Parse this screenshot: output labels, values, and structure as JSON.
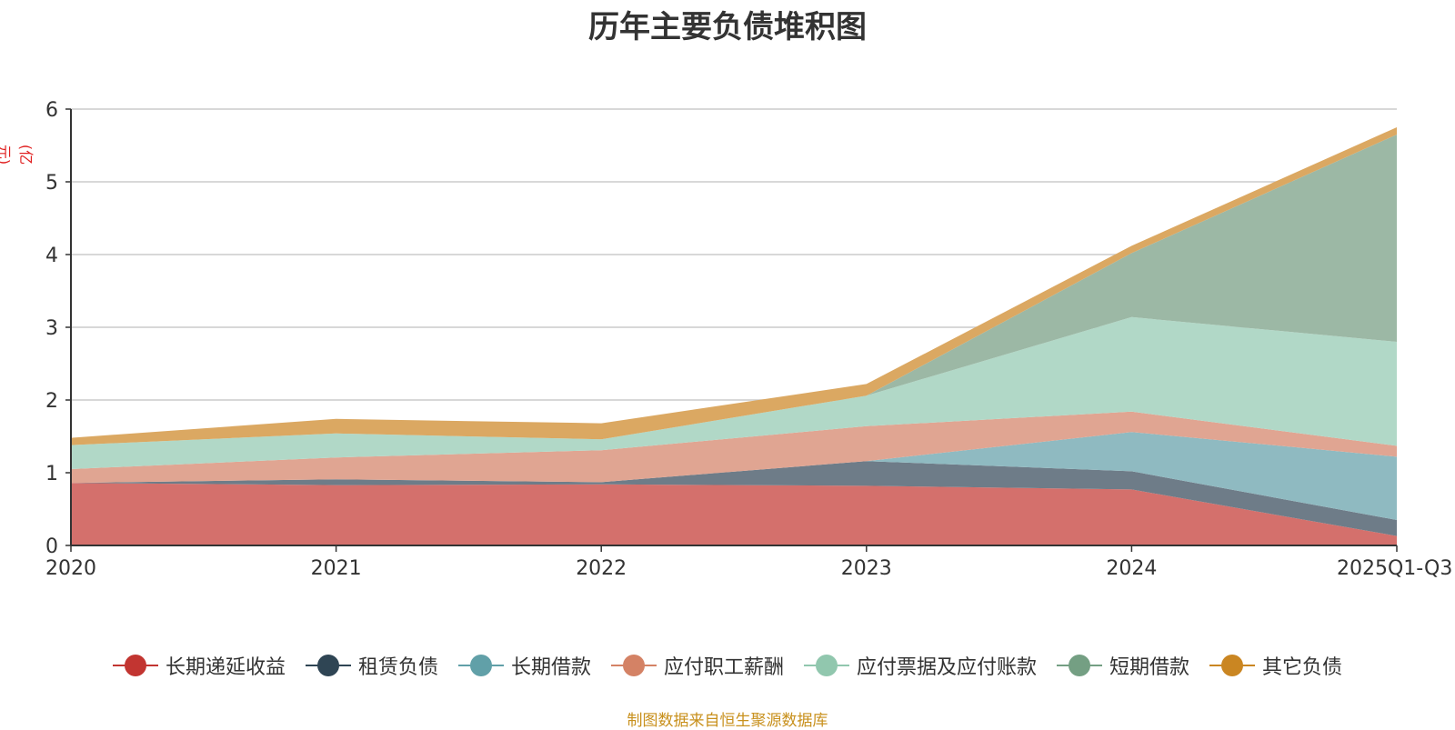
{
  "chart_data": {
    "type": "area",
    "stacked": true,
    "title": "历年主要负债堆积图",
    "ylabel": "(亿元)",
    "xlabel": "",
    "ylim": [
      0,
      6
    ],
    "yticks": [
      0,
      1,
      2,
      3,
      4,
      5,
      6
    ],
    "grid": true,
    "legend_position": "bottom",
    "categories": [
      "2020",
      "2021",
      "2022",
      "2023",
      "2024",
      "2025Q1-Q3"
    ],
    "series": [
      {
        "name": "长期递延收益",
        "color": "#c23531",
        "fill": "#d4706c",
        "values": [
          0.86,
          0.83,
          0.84,
          0.82,
          0.77,
          0.13
        ]
      },
      {
        "name": "租赁负债",
        "color": "#2f4554",
        "fill": "#6e7c88",
        "values": [
          0.0,
          0.08,
          0.03,
          0.34,
          0.25,
          0.22
        ]
      },
      {
        "name": "长期借款",
        "color": "#61a0a8",
        "fill": "#8fbac1",
        "values": [
          0.0,
          0.0,
          0.0,
          0.0,
          0.54,
          0.87
        ]
      },
      {
        "name": "应付职工薪酬",
        "color": "#d48265",
        "fill": "#e0a592",
        "values": [
          0.19,
          0.3,
          0.44,
          0.48,
          0.28,
          0.15
        ]
      },
      {
        "name": "应付票据及应付账款",
        "color": "#91c7ae",
        "fill": "#b1d8c7",
        "values": [
          0.33,
          0.33,
          0.15,
          0.42,
          1.3,
          1.43
        ]
      },
      {
        "name": "短期借款",
        "color": "#749f83",
        "fill": "#9cb8a5",
        "values": [
          0.0,
          0.0,
          0.0,
          0.0,
          0.88,
          2.85
        ]
      },
      {
        "name": "其它负债",
        "color": "#ca8622",
        "fill": "#dba862",
        "values": [
          0.1,
          0.2,
          0.22,
          0.16,
          0.1,
          0.1
        ]
      }
    ]
  },
  "source_note": "制图数据来自恒生聚源数据库"
}
